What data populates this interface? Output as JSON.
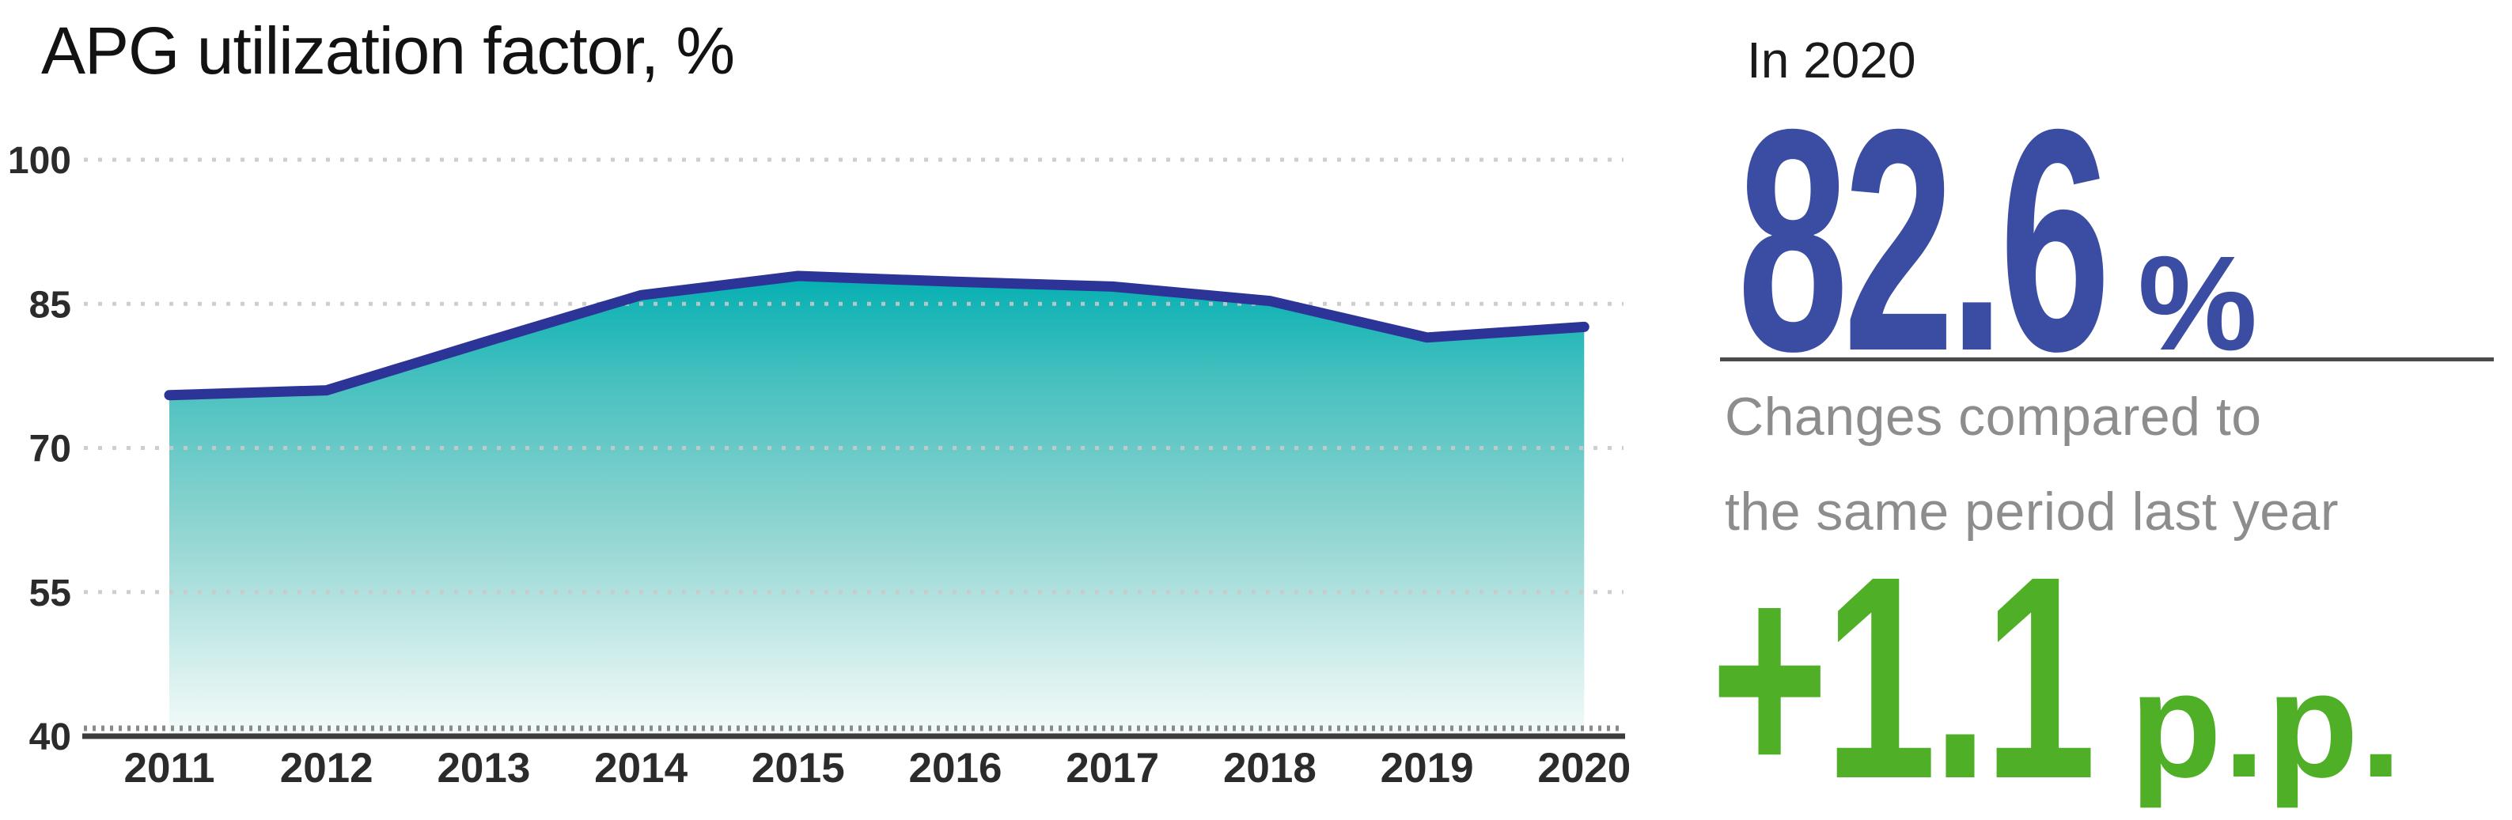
{
  "page": {
    "title": "APG utilization factor, %"
  },
  "chart_data": {
    "type": "area",
    "title": "APG utilization factor, %",
    "x": [
      2011,
      2012,
      2013,
      2014,
      2015,
      2016,
      2017,
      2018,
      2019,
      2020
    ],
    "series": [
      {
        "name": "APG utilization factor, %",
        "values": [
          75.5,
          76.0,
          81.0,
          85.9,
          87.9,
          87.3,
          86.8,
          85.3,
          81.5,
          82.6
        ]
      }
    ],
    "ylim": [
      40,
      100
    ],
    "yticks": [
      40,
      55,
      70,
      85,
      100
    ],
    "grid": "dotted-horizontal",
    "legend": "none",
    "colors": {
      "line": "#2C3497",
      "fill_stops": [
        [
          "0%",
          "#00AEB1"
        ],
        [
          "25%",
          "#4AC1C0"
        ],
        [
          "55%",
          "#8FD4D1"
        ],
        [
          "85%",
          "#D4EFED"
        ],
        [
          "100%",
          "#F4FBFA"
        ]
      ],
      "grid": "#C9C9C9",
      "axis": "#3C3C3C",
      "axis_comb": "#8A8A8A",
      "tick_label": "#2B2B2B"
    }
  },
  "panel": {
    "period_label": "In 2020",
    "value": "82.6",
    "unit": "%",
    "caption_line1": "Changes compared to",
    "caption_line2": "the same period last year",
    "change_value": "+1.1",
    "change_unit": "p.p.",
    "colors": {
      "value": "#3B4DA2",
      "caption": "#8D8D8D",
      "change": "#4FAF27",
      "divider": "#4B4B4B"
    }
  }
}
